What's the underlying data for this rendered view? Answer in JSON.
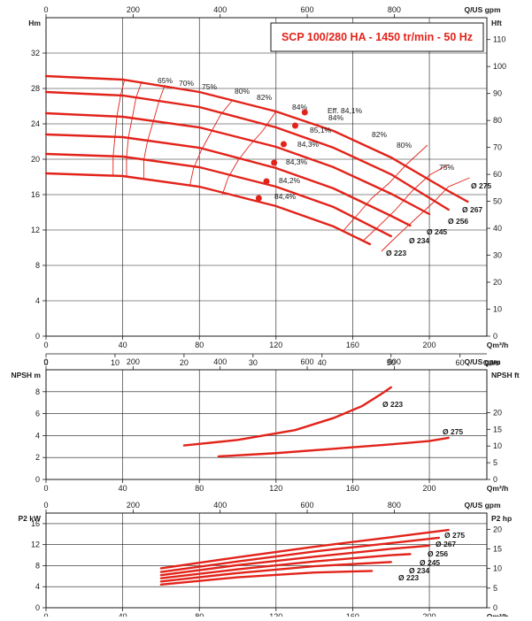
{
  "colors": {
    "curve": "#e2231a",
    "axis": "#1a1a1a",
    "grid": "#1a1a1a",
    "title": "#e2231a"
  },
  "chart_data": [
    {
      "type": "line",
      "title": "SCP 100/280 HA - 1450 tr/min - 50 Hz",
      "ylabel": "Hm",
      "ylabel_right": "Hft",
      "xlabel": "Qm³/h",
      "xlabel_top": "Q/US gpm",
      "xlabel_bottom2": "Q/l/s",
      "xlim": [
        0,
        230
      ],
      "ylim": [
        0,
        36
      ],
      "xticks": [
        0,
        40,
        80,
        120,
        160,
        200
      ],
      "yticks": [
        0,
        4,
        8,
        12,
        16,
        20,
        24,
        28,
        32
      ],
      "top_ticks": [
        0,
        200,
        400,
        600,
        800
      ],
      "right_ticks": [
        0,
        10,
        20,
        30,
        40,
        50,
        60,
        70,
        80,
        90,
        100,
        110
      ],
      "bottom2_ticks": [
        0,
        10,
        20,
        30,
        40,
        50,
        60
      ],
      "grid": true,
      "series": [
        {
          "name": "Ø 275",
          "x": [
            0,
            40,
            80,
            120,
            150,
            180,
            210,
            220
          ],
          "y": [
            29.4,
            29.0,
            27.6,
            25.4,
            23.2,
            20.2,
            16.4,
            15.2
          ]
        },
        {
          "name": "Ø 267",
          "x": [
            0,
            40,
            80,
            120,
            150,
            180,
            210
          ],
          "y": [
            27.6,
            27.2,
            25.9,
            23.6,
            21.3,
            18.3,
            14.3
          ]
        },
        {
          "name": "Ø 256",
          "x": [
            0,
            40,
            80,
            120,
            150,
            180,
            200
          ],
          "y": [
            25.2,
            24.8,
            23.6,
            21.4,
            19.1,
            16.1,
            13.8
          ]
        },
        {
          "name": "Ø 245",
          "x": [
            0,
            40,
            80,
            120,
            150,
            180,
            190
          ],
          "y": [
            22.8,
            22.5,
            21.3,
            19.0,
            16.7,
            13.6,
            12.5
          ]
        },
        {
          "name": "Ø 234",
          "x": [
            0,
            40,
            80,
            120,
            150,
            180
          ],
          "y": [
            20.6,
            20.3,
            19.1,
            16.9,
            14.6,
            11.3
          ]
        },
        {
          "name": "Ø 223",
          "x": [
            0,
            40,
            80,
            120,
            150,
            169
          ],
          "y": [
            18.4,
            18.1,
            16.9,
            14.7,
            12.4,
            10.4
          ]
        }
      ],
      "efficiency_labels": [
        "65%",
        "70%",
        "75%",
        "80%",
        "82%",
        "84%",
        "84%",
        "Eff. 84,1%",
        "85,1%",
        "84,3%",
        "84,3%",
        "84,2%",
        "84,4%",
        "82%",
        "80%",
        "75%"
      ],
      "best_points": [
        {
          "x": 130,
          "y": 23.8
        },
        {
          "x": 124,
          "y": 21.7
        },
        {
          "x": 119,
          "y": 19.6
        },
        {
          "x": 115,
          "y": 17.5
        },
        {
          "x": 111,
          "y": 15.6
        },
        {
          "x": 135,
          "y": 25.3
        }
      ],
      "efficiency_curves": [
        {
          "x": [
            35,
            35,
            36,
            37,
            39,
            41
          ],
          "y": [
            18.1,
            20.3,
            22.6,
            24.9,
            27.3,
            29.0
          ]
        },
        {
          "x": [
            42,
            42,
            43,
            45,
            47,
            50
          ],
          "y": [
            18.0,
            20.2,
            22.5,
            24.7,
            27.0,
            28.8
          ]
        },
        {
          "x": [
            51,
            51,
            53,
            56,
            59,
            62
          ],
          "y": [
            17.7,
            19.9,
            22.1,
            24.3,
            26.6,
            28.4
          ]
        },
        {
          "x": [
            75,
            77,
            81,
            86,
            91,
            97
          ],
          "y": [
            17.0,
            19.0,
            21.0,
            23.0,
            25.0,
            26.6
          ]
        },
        {
          "x": [
            92,
            95,
            100,
            106,
            113,
            120
          ],
          "y": [
            16.0,
            17.9,
            19.8,
            21.5,
            23.2,
            25.4
          ]
        },
        {
          "x": [
            155,
            162,
            170,
            179,
            188,
            199
          ],
          "y": [
            11.9,
            13.6,
            15.6,
            17.3,
            19.4,
            21.6
          ]
        },
        {
          "x": [
            165,
            173,
            182,
            191,
            200,
            210
          ],
          "y": [
            10.7,
            12.3,
            14.2,
            16.4,
            18.2,
            19.4
          ]
        },
        {
          "x": [
            175,
            184,
            193,
            202,
            210,
            221
          ],
          "y": [
            9.6,
            11.5,
            13.3,
            15.1,
            16.9,
            17.9
          ]
        }
      ]
    },
    {
      "type": "line",
      "ylabel": "NPSH m",
      "ylabel_right": "NPSH ft",
      "xlabel": "Qm³/h",
      "xlabel_top": "Q/US gpm",
      "xlim": [
        0,
        230
      ],
      "ylim": [
        0,
        10
      ],
      "xticks": [
        0,
        40,
        80,
        120,
        160,
        200
      ],
      "yticks": [
        0,
        2,
        4,
        6,
        8
      ],
      "top_ticks": [
        0,
        200,
        400,
        600,
        800
      ],
      "right_ticks": [
        0,
        5,
        10,
        15,
        20
      ],
      "grid": true,
      "series": [
        {
          "name": "Ø 223",
          "x": [
            72,
            100,
            130,
            150,
            165,
            175,
            180
          ],
          "y": [
            3.1,
            3.6,
            4.5,
            5.6,
            6.7,
            7.8,
            8.4
          ]
        },
        {
          "name": "Ø 275",
          "x": [
            90,
            120,
            150,
            180,
            200,
            210
          ],
          "y": [
            2.1,
            2.4,
            2.8,
            3.2,
            3.5,
            3.8
          ]
        }
      ]
    },
    {
      "type": "line",
      "ylabel": "P2 kW",
      "ylabel_right": "P2 hp",
      "xlabel": "Qm³/h",
      "xlabel_top": "Q/US gpm",
      "xlim": [
        0,
        230
      ],
      "ylim": [
        0,
        18
      ],
      "xticks": [
        0,
        40,
        80,
        120,
        160,
        200
      ],
      "yticks": [
        0,
        4,
        8,
        12,
        16
      ],
      "top_ticks": [
        0,
        200,
        400,
        600,
        800
      ],
      "right_ticks": [
        0,
        5,
        10,
        15,
        20
      ],
      "grid": true,
      "series": [
        {
          "name": "Ø 275",
          "x": [
            60,
            100,
            140,
            180,
            210
          ],
          "y": [
            7.5,
            9.6,
            11.6,
            13.4,
            14.8
          ]
        },
        {
          "name": "Ø 267",
          "x": [
            60,
            100,
            140,
            180,
            205
          ],
          "y": [
            6.8,
            8.8,
            10.7,
            12.3,
            13.3
          ]
        },
        {
          "name": "Ø 256",
          "x": [
            60,
            100,
            140,
            180,
            200
          ],
          "y": [
            6.2,
            8.1,
            9.7,
            11.2,
            11.8
          ]
        },
        {
          "name": "Ø 245",
          "x": [
            60,
            100,
            140,
            180,
            190
          ],
          "y": [
            5.6,
            7.3,
            8.8,
            10.0,
            10.2
          ]
        },
        {
          "name": "Ø 234",
          "x": [
            60,
            100,
            140,
            180
          ],
          "y": [
            5.0,
            6.6,
            7.9,
            8.7
          ]
        },
        {
          "name": "Ø 223",
          "x": [
            60,
            100,
            140,
            170
          ],
          "y": [
            4.4,
            5.8,
            6.7,
            7.0
          ]
        }
      ]
    }
  ]
}
